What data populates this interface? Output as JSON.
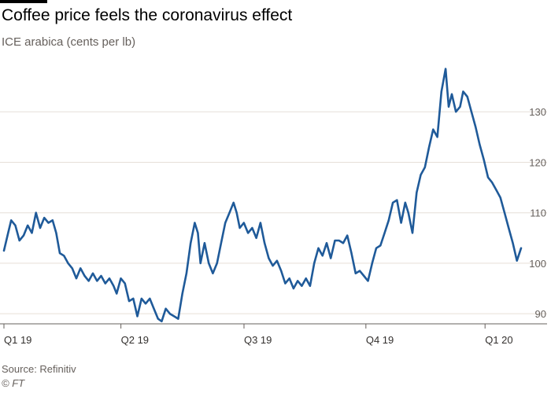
{
  "chart_data": {
    "type": "line",
    "title": "Coffee price feels the coronavirus effect",
    "subtitle": "ICE arabica (cents per lb)",
    "source": "Source: Refinitiv",
    "copyright": "© FT",
    "ylabel": "cents per lb",
    "ylim": [
      88,
      140
    ],
    "yticks": [
      90,
      100,
      110,
      120,
      130
    ],
    "ytick_labels": [
      "90",
      "100",
      "110",
      "120",
      "130"
    ],
    "xlim": [
      0,
      1
    ],
    "xticks": [
      {
        "label": "Q1 19",
        "pos": 0.0
      },
      {
        "label": "Q2 19",
        "pos": 0.2262
      },
      {
        "label": "Q3 19",
        "pos": 0.4642
      },
      {
        "label": "Q4 19",
        "pos": 0.6999
      },
      {
        "label": "Q1 20",
        "pos": 0.9303
      }
    ],
    "series": [
      {
        "name": "ICE arabica",
        "color": "#1f5a99",
        "points": [
          [
            0.0,
            102.5
          ],
          [
            0.008,
            106.0
          ],
          [
            0.014,
            108.5
          ],
          [
            0.022,
            107.5
          ],
          [
            0.03,
            104.5
          ],
          [
            0.038,
            105.5
          ],
          [
            0.046,
            107.5
          ],
          [
            0.054,
            106.0
          ],
          [
            0.062,
            110.0
          ],
          [
            0.07,
            107.0
          ],
          [
            0.078,
            109.0
          ],
          [
            0.086,
            108.0
          ],
          [
            0.094,
            108.5
          ],
          [
            0.101,
            106.0
          ],
          [
            0.108,
            102.0
          ],
          [
            0.116,
            101.5
          ],
          [
            0.124,
            100.0
          ],
          [
            0.132,
            99.0
          ],
          [
            0.14,
            97.0
          ],
          [
            0.148,
            99.0
          ],
          [
            0.156,
            97.5
          ],
          [
            0.164,
            96.5
          ],
          [
            0.172,
            98.0
          ],
          [
            0.18,
            96.5
          ],
          [
            0.188,
            97.5
          ],
          [
            0.196,
            96.0
          ],
          [
            0.204,
            97.0
          ],
          [
            0.212,
            95.5
          ],
          [
            0.218,
            94.0
          ],
          [
            0.226,
            97.0
          ],
          [
            0.234,
            96.0
          ],
          [
            0.242,
            92.5
          ],
          [
            0.25,
            93.0
          ],
          [
            0.258,
            89.5
          ],
          [
            0.266,
            93.0
          ],
          [
            0.274,
            92.0
          ],
          [
            0.282,
            93.0
          ],
          [
            0.29,
            91.0
          ],
          [
            0.298,
            89.0
          ],
          [
            0.305,
            88.5
          ],
          [
            0.313,
            91.0
          ],
          [
            0.321,
            90.0
          ],
          [
            0.329,
            89.5
          ],
          [
            0.337,
            89.0
          ],
          [
            0.345,
            94.0
          ],
          [
            0.353,
            98.0
          ],
          [
            0.361,
            104.0
          ],
          [
            0.369,
            108.0
          ],
          [
            0.375,
            106.0
          ],
          [
            0.38,
            100.0
          ],
          [
            0.388,
            104.0
          ],
          [
            0.396,
            100.0
          ],
          [
            0.404,
            98.0
          ],
          [
            0.412,
            100.0
          ],
          [
            0.42,
            104.0
          ],
          [
            0.428,
            108.0
          ],
          [
            0.436,
            110.0
          ],
          [
            0.444,
            112.0
          ],
          [
            0.45,
            110.0
          ],
          [
            0.456,
            107.0
          ],
          [
            0.464,
            108.0
          ],
          [
            0.472,
            106.0
          ],
          [
            0.48,
            107.0
          ],
          [
            0.488,
            105.0
          ],
          [
            0.496,
            108.0
          ],
          [
            0.504,
            104.0
          ],
          [
            0.512,
            101.0
          ],
          [
            0.52,
            99.5
          ],
          [
            0.528,
            100.5
          ],
          [
            0.536,
            98.5
          ],
          [
            0.544,
            96.0
          ],
          [
            0.552,
            97.0
          ],
          [
            0.56,
            95.0
          ],
          [
            0.568,
            96.5
          ],
          [
            0.576,
            95.5
          ],
          [
            0.584,
            97.0
          ],
          [
            0.592,
            95.5
          ],
          [
            0.6,
            100.0
          ],
          [
            0.608,
            103.0
          ],
          [
            0.616,
            101.5
          ],
          [
            0.624,
            104.0
          ],
          [
            0.632,
            101.0
          ],
          [
            0.64,
            104.5
          ],
          [
            0.648,
            104.5
          ],
          [
            0.656,
            104.0
          ],
          [
            0.664,
            105.5
          ],
          [
            0.672,
            102.0
          ],
          [
            0.68,
            98.0
          ],
          [
            0.688,
            98.5
          ],
          [
            0.696,
            97.5
          ],
          [
            0.704,
            96.5
          ],
          [
            0.712,
            100.0
          ],
          [
            0.72,
            103.0
          ],
          [
            0.728,
            103.5
          ],
          [
            0.736,
            106.0
          ],
          [
            0.744,
            108.5
          ],
          [
            0.752,
            112.0
          ],
          [
            0.76,
            112.5
          ],
          [
            0.768,
            108.0
          ],
          [
            0.776,
            112.0
          ],
          [
            0.782,
            110.0
          ],
          [
            0.79,
            106.0
          ],
          [
            0.798,
            114.0
          ],
          [
            0.806,
            117.5
          ],
          [
            0.814,
            119.0
          ],
          [
            0.822,
            123.0
          ],
          [
            0.83,
            126.5
          ],
          [
            0.838,
            125.0
          ],
          [
            0.846,
            134.0
          ],
          [
            0.854,
            138.5
          ],
          [
            0.86,
            131.0
          ],
          [
            0.866,
            133.5
          ],
          [
            0.874,
            130.0
          ],
          [
            0.882,
            131.0
          ],
          [
            0.888,
            134.0
          ],
          [
            0.896,
            133.0
          ],
          [
            0.904,
            130.0
          ],
          [
            0.912,
            127.0
          ],
          [
            0.92,
            123.5
          ],
          [
            0.928,
            120.5
          ],
          [
            0.936,
            117.0
          ],
          [
            0.944,
            116.0
          ],
          [
            0.952,
            114.5
          ],
          [
            0.96,
            113.0
          ],
          [
            0.968,
            110.0
          ],
          [
            0.976,
            107.0
          ],
          [
            0.984,
            104.0
          ],
          [
            0.992,
            100.5
          ],
          [
            1.0,
            103.0
          ]
        ]
      }
    ]
  }
}
